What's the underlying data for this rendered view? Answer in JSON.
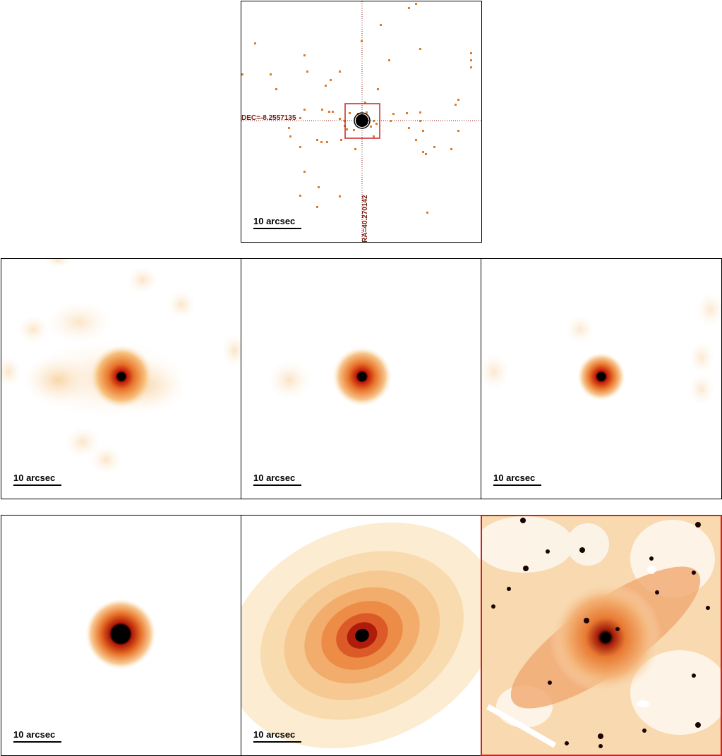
{
  "scale_label": "10 arcsec",
  "top_panel": {
    "dec_label": "DEC=-8.2557135",
    "ra_label": "RA=40.270142"
  },
  "colors": {
    "panel_border": "#000000",
    "highlight_border": "#cc2222",
    "crosshair": "#8b1a1a",
    "events": "#e07b2a"
  }
}
